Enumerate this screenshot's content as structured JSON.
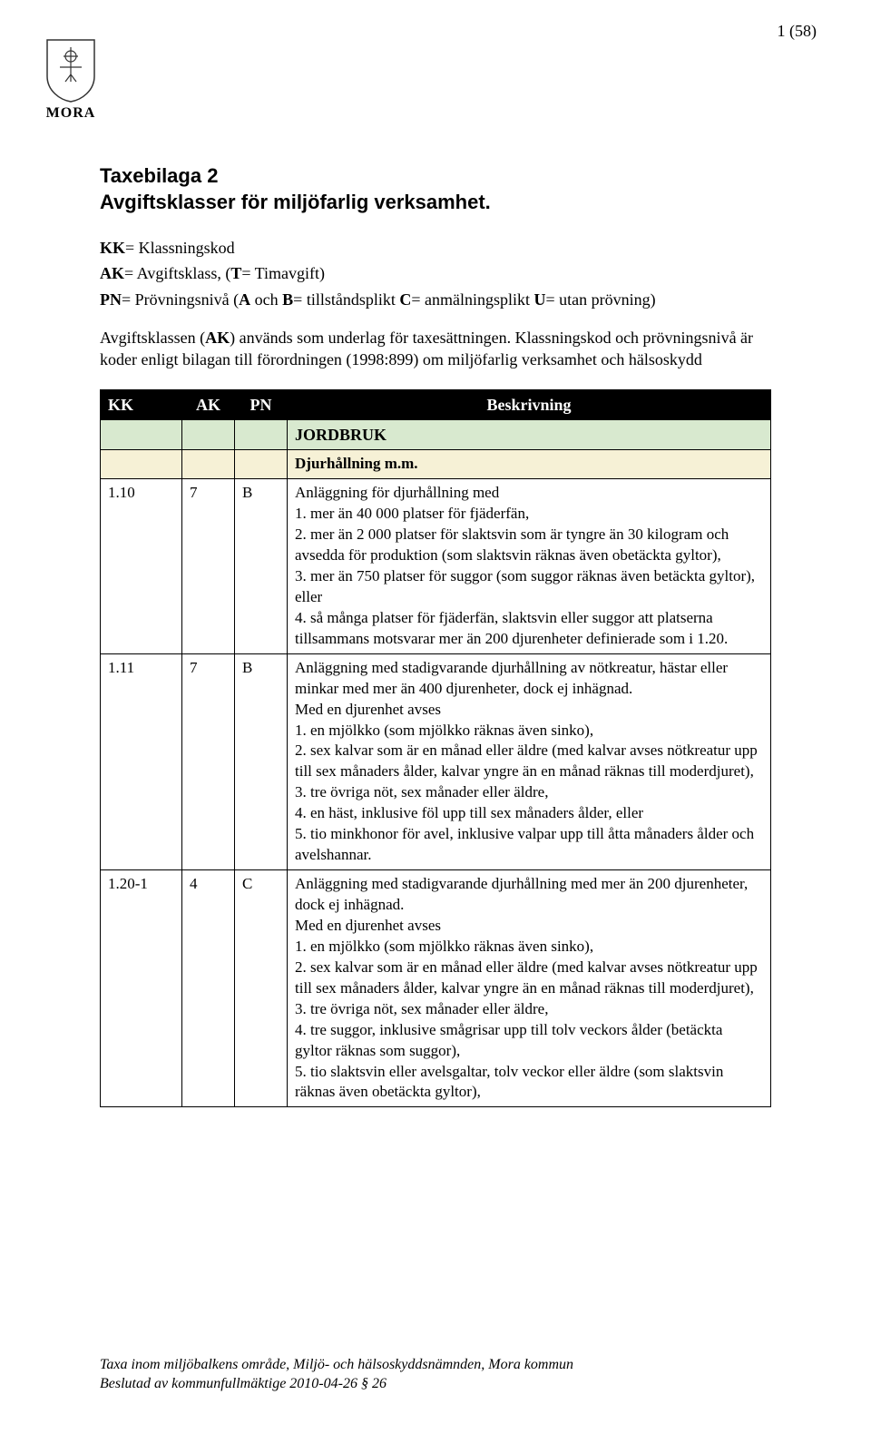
{
  "page_number": "1 (58)",
  "logo_label": "MORA",
  "title_line1": "Taxebilaga 2",
  "title_line2": "Avgiftsklasser för miljöfarlig verksamhet.",
  "defs": {
    "kk": "KK= Klassningskod",
    "ak": "AK= Avgiftsklass, (T= Timavgift)",
    "pn": "PN= Prövningsnivå (A och B= tillståndsplikt C= anmälningsplikt U= utan prövning)",
    "note": "Avgiftsklassen (AK) används som underlag för taxesättningen. Klassningskod och prövningsnivå är koder enligt bilagan till förordningen (1998:899) om miljöfarlig verksamhet och hälsoskydd"
  },
  "headers": {
    "kk": "KK",
    "ak": "AK",
    "pn": "PN",
    "desc": "Beskrivning"
  },
  "section1": "JORDBRUK",
  "subsection1": "Djurhållning m.m.",
  "rows": [
    {
      "kk": "1.10",
      "ak": "7",
      "pn": "B",
      "desc": "Anläggning för djurhållning med\n1. mer än 40 000 platser för fjäderfän,\n2. mer än 2 000 platser för slaktsvin som är tyngre än 30 kilogram och avsedda för produktion (som slaktsvin räknas även obetäckta gyltor),\n3. mer än 750 platser för suggor (som suggor räknas även betäckta gyltor), eller\n4. så många platser för fjäderfän, slaktsvin eller suggor att platserna tillsammans motsvarar mer än 200 djurenheter definierade som i 1.20."
    },
    {
      "kk": "1.11",
      "ak": "7",
      "pn": "B",
      "desc": "Anläggning med stadigvarande djurhållning av nötkreatur, hästar eller minkar med mer än 400 djurenheter, dock ej inhägnad.\nMed en djurenhet avses\n1. en mjölkko (som mjölkko räknas även sinko),\n2. sex kalvar som är en månad eller äldre (med kalvar avses nötkreatur upp till sex månaders ålder, kalvar yngre än en månad räknas till moderdjuret),\n3. tre övriga nöt, sex månader eller äldre,\n4. en häst, inklusive föl upp till sex månaders ålder, eller\n5. tio minkhonor för avel, inklusive valpar upp till åtta månaders ålder och avelshannar."
    },
    {
      "kk": "1.20-1",
      "ak": "4",
      "pn": "C",
      "desc": "Anläggning med stadigvarande djurhållning med mer än 200 djurenheter, dock ej inhägnad.\nMed en djurenhet avses\n1. en mjölkko (som mjölkko räknas även sinko),\n2. sex kalvar som är en månad eller äldre (med kalvar avses nötkreatur upp till sex månaders ålder, kalvar yngre än en månad räknas till moderdjuret),\n3. tre övriga nöt, sex månader eller äldre,\n4. tre suggor, inklusive smågrisar upp till tolv veckors ålder (betäckta gyltor räknas som suggor),\n5. tio slaktsvin eller avelsgaltar, tolv veckor eller äldre (som slaktsvin räknas även obetäckta gyltor),"
    }
  ],
  "footer": {
    "line1": "Taxa inom miljöbalkens område, Miljö- och hälsoskyddsnämnden, Mora kommun",
    "line2": "Beslutad av kommunfullmäktige 2010-04-26 § 26"
  },
  "colors": {
    "section_bg": "#d8e9cf",
    "subsection_bg": "#f6f1d6",
    "header_bg": "#000000",
    "header_fg": "#ffffff"
  }
}
